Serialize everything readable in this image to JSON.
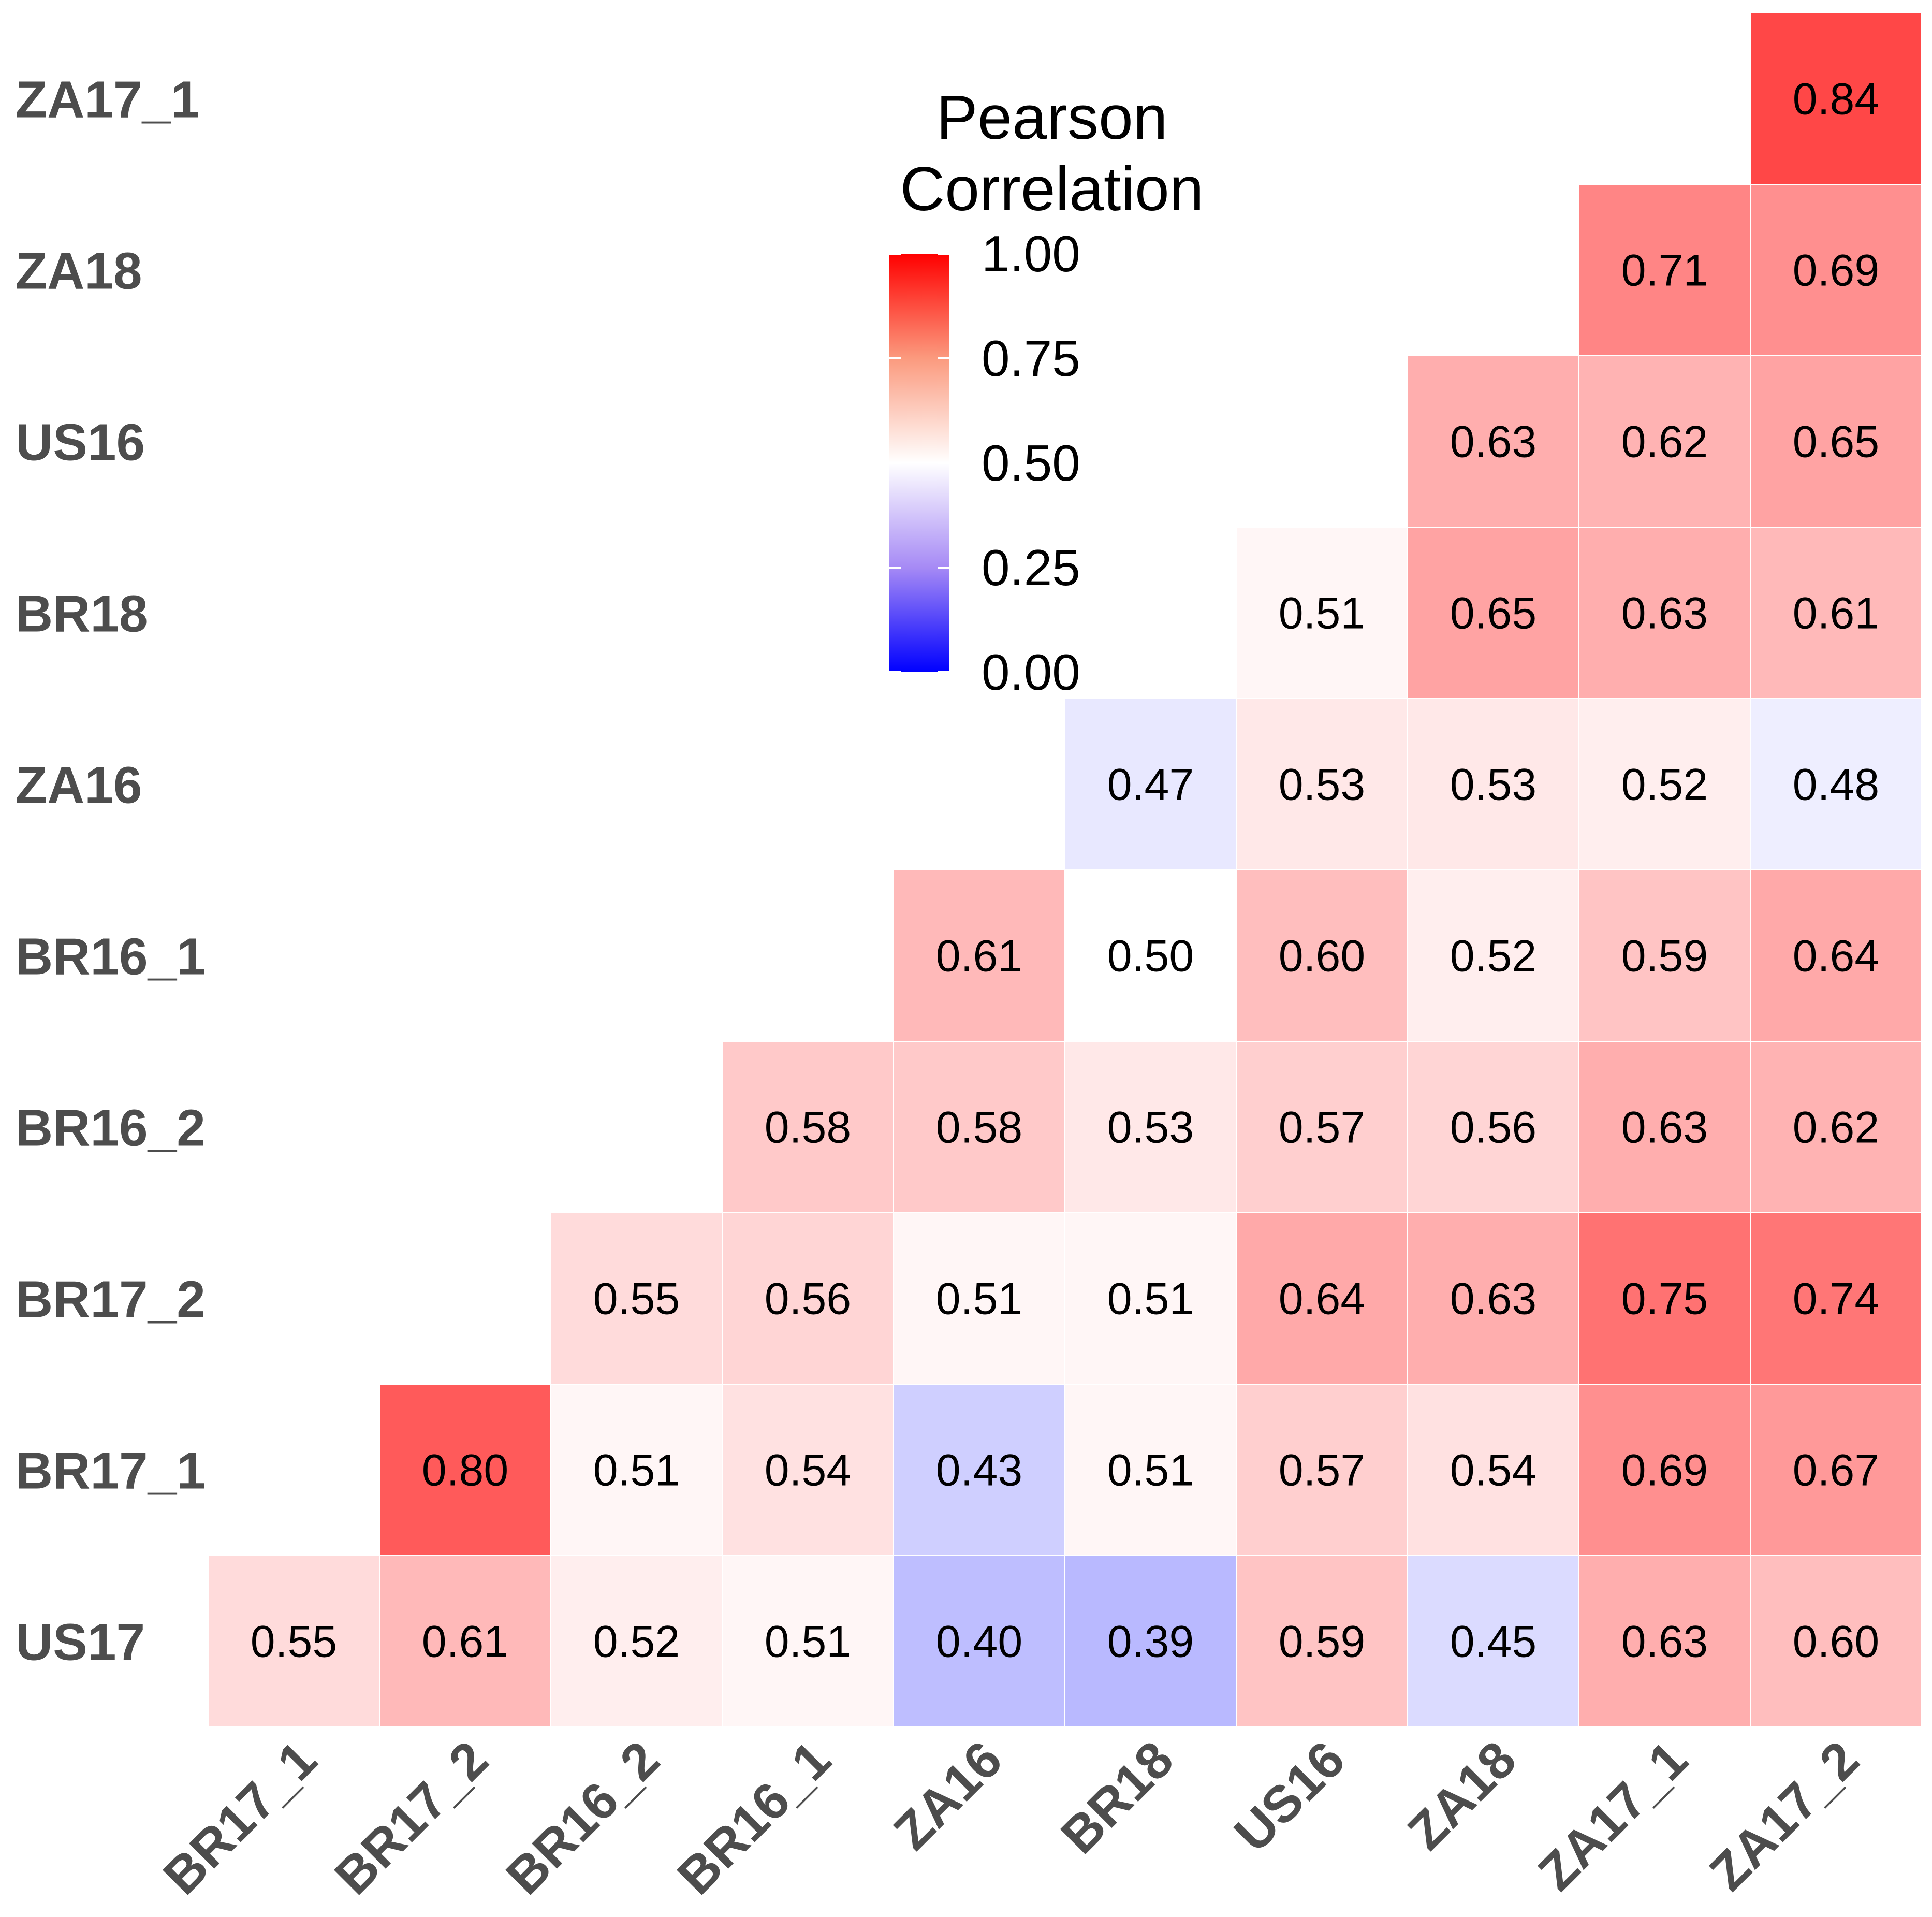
{
  "chart_data": {
    "type": "heatmap",
    "title": "",
    "legend": {
      "title_lines": [
        "Pearson",
        "Correlation"
      ],
      "ticks": [
        "1.00",
        "0.75",
        "0.50",
        "0.25",
        "0.00"
      ],
      "min": 0,
      "mid": 0.5,
      "max": 1,
      "colors": {
        "low": "#0000ff",
        "mid": "#ffffff",
        "high": "#ff0000"
      }
    },
    "x_labels": [
      "BR17_1",
      "BR17_2",
      "BR16_2",
      "BR16_1",
      "ZA16",
      "BR18",
      "US16",
      "ZA18",
      "ZA17_1",
      "ZA17_2"
    ],
    "y_labels": [
      "ZA17_1",
      "ZA18",
      "US16",
      "BR18",
      "ZA16",
      "BR16_1",
      "BR16_2",
      "BR17_2",
      "BR17_1",
      "US17"
    ],
    "cells": [
      {
        "row": "ZA17_1",
        "col": "ZA17_2",
        "value": 0.84,
        "label": "0.84"
      },
      {
        "row": "ZA18",
        "col": "ZA17_1",
        "value": 0.71,
        "label": "0.71"
      },
      {
        "row": "ZA18",
        "col": "ZA17_2",
        "value": 0.69,
        "label": "0.69"
      },
      {
        "row": "US16",
        "col": "ZA18",
        "value": 0.63,
        "label": "0.63"
      },
      {
        "row": "US16",
        "col": "ZA17_1",
        "value": 0.62,
        "label": "0.62"
      },
      {
        "row": "US16",
        "col": "ZA17_2",
        "value": 0.65,
        "label": "0.65"
      },
      {
        "row": "BR18",
        "col": "US16",
        "value": 0.51,
        "label": "0.51"
      },
      {
        "row": "BR18",
        "col": "ZA18",
        "value": 0.65,
        "label": "0.65"
      },
      {
        "row": "BR18",
        "col": "ZA17_1",
        "value": 0.63,
        "label": "0.63"
      },
      {
        "row": "BR18",
        "col": "ZA17_2",
        "value": 0.61,
        "label": "0.61"
      },
      {
        "row": "ZA16",
        "col": "BR18",
        "value": 0.47,
        "label": "0.47"
      },
      {
        "row": "ZA16",
        "col": "US16",
        "value": 0.53,
        "label": "0.53"
      },
      {
        "row": "ZA16",
        "col": "ZA18",
        "value": 0.53,
        "label": "0.53"
      },
      {
        "row": "ZA16",
        "col": "ZA17_1",
        "value": 0.52,
        "label": "0.52"
      },
      {
        "row": "ZA16",
        "col": "ZA17_2",
        "value": 0.48,
        "label": "0.48"
      },
      {
        "row": "BR16_1",
        "col": "ZA16",
        "value": 0.61,
        "label": "0.61"
      },
      {
        "row": "BR16_1",
        "col": "BR18",
        "value": 0.5,
        "label": "0.50"
      },
      {
        "row": "BR16_1",
        "col": "US16",
        "value": 0.6,
        "label": "0.60"
      },
      {
        "row": "BR16_1",
        "col": "ZA18",
        "value": 0.52,
        "label": "0.52"
      },
      {
        "row": "BR16_1",
        "col": "ZA17_1",
        "value": 0.59,
        "label": "0.59"
      },
      {
        "row": "BR16_1",
        "col": "ZA17_2",
        "value": 0.64,
        "label": "0.64"
      },
      {
        "row": "BR16_2",
        "col": "BR16_1",
        "value": 0.58,
        "label": "0.58"
      },
      {
        "row": "BR16_2",
        "col": "ZA16",
        "value": 0.58,
        "label": "0.58"
      },
      {
        "row": "BR16_2",
        "col": "BR18",
        "value": 0.53,
        "label": "0.53"
      },
      {
        "row": "BR16_2",
        "col": "US16",
        "value": 0.57,
        "label": "0.57"
      },
      {
        "row": "BR16_2",
        "col": "ZA18",
        "value": 0.56,
        "label": "0.56"
      },
      {
        "row": "BR16_2",
        "col": "ZA17_1",
        "value": 0.63,
        "label": "0.63"
      },
      {
        "row": "BR16_2",
        "col": "ZA17_2",
        "value": 0.62,
        "label": "0.62"
      },
      {
        "row": "BR17_2",
        "col": "BR16_2",
        "value": 0.55,
        "label": "0.55"
      },
      {
        "row": "BR17_2",
        "col": "BR16_1",
        "value": 0.56,
        "label": "0.56"
      },
      {
        "row": "BR17_2",
        "col": "ZA16",
        "value": 0.51,
        "label": "0.51"
      },
      {
        "row": "BR17_2",
        "col": "BR18",
        "value": 0.51,
        "label": "0.51"
      },
      {
        "row": "BR17_2",
        "col": "US16",
        "value": 0.64,
        "label": "0.64"
      },
      {
        "row": "BR17_2",
        "col": "ZA18",
        "value": 0.63,
        "label": "0.63"
      },
      {
        "row": "BR17_2",
        "col": "ZA17_1",
        "value": 0.75,
        "label": "0.75"
      },
      {
        "row": "BR17_2",
        "col": "ZA17_2",
        "value": 0.74,
        "label": "0.74"
      },
      {
        "row": "BR17_1",
        "col": "BR17_2",
        "value": 0.8,
        "label": "0.80"
      },
      {
        "row": "BR17_1",
        "col": "BR16_2",
        "value": 0.51,
        "label": "0.51"
      },
      {
        "row": "BR17_1",
        "col": "BR16_1",
        "value": 0.54,
        "label": "0.54"
      },
      {
        "row": "BR17_1",
        "col": "ZA16",
        "value": 0.43,
        "label": "0.43"
      },
      {
        "row": "BR17_1",
        "col": "BR18",
        "value": 0.51,
        "label": "0.51"
      },
      {
        "row": "BR17_1",
        "col": "US16",
        "value": 0.57,
        "label": "0.57"
      },
      {
        "row": "BR17_1",
        "col": "ZA18",
        "value": 0.54,
        "label": "0.54"
      },
      {
        "row": "BR17_1",
        "col": "ZA17_1",
        "value": 0.69,
        "label": "0.69"
      },
      {
        "row": "BR17_1",
        "col": "ZA17_2",
        "value": 0.67,
        "label": "0.67"
      },
      {
        "row": "US17",
        "col": "BR17_1",
        "value": 0.55,
        "label": "0.55"
      },
      {
        "row": "US17",
        "col": "BR17_2",
        "value": 0.61,
        "label": "0.61"
      },
      {
        "row": "US17",
        "col": "BR16_2",
        "value": 0.52,
        "label": "0.52"
      },
      {
        "row": "US17",
        "col": "BR16_1",
        "value": 0.51,
        "label": "0.51"
      },
      {
        "row": "US17",
        "col": "ZA16",
        "value": 0.4,
        "label": "0.40"
      },
      {
        "row": "US17",
        "col": "BR18",
        "value": 0.39,
        "label": "0.39"
      },
      {
        "row": "US17",
        "col": "US16",
        "value": 0.59,
        "label": "0.59"
      },
      {
        "row": "US17",
        "col": "ZA18",
        "value": 0.45,
        "label": "0.45"
      },
      {
        "row": "US17",
        "col": "ZA17_1",
        "value": 0.63,
        "label": "0.63"
      },
      {
        "row": "US17",
        "col": "ZA17_2",
        "value": 0.6,
        "label": "0.60"
      }
    ]
  }
}
